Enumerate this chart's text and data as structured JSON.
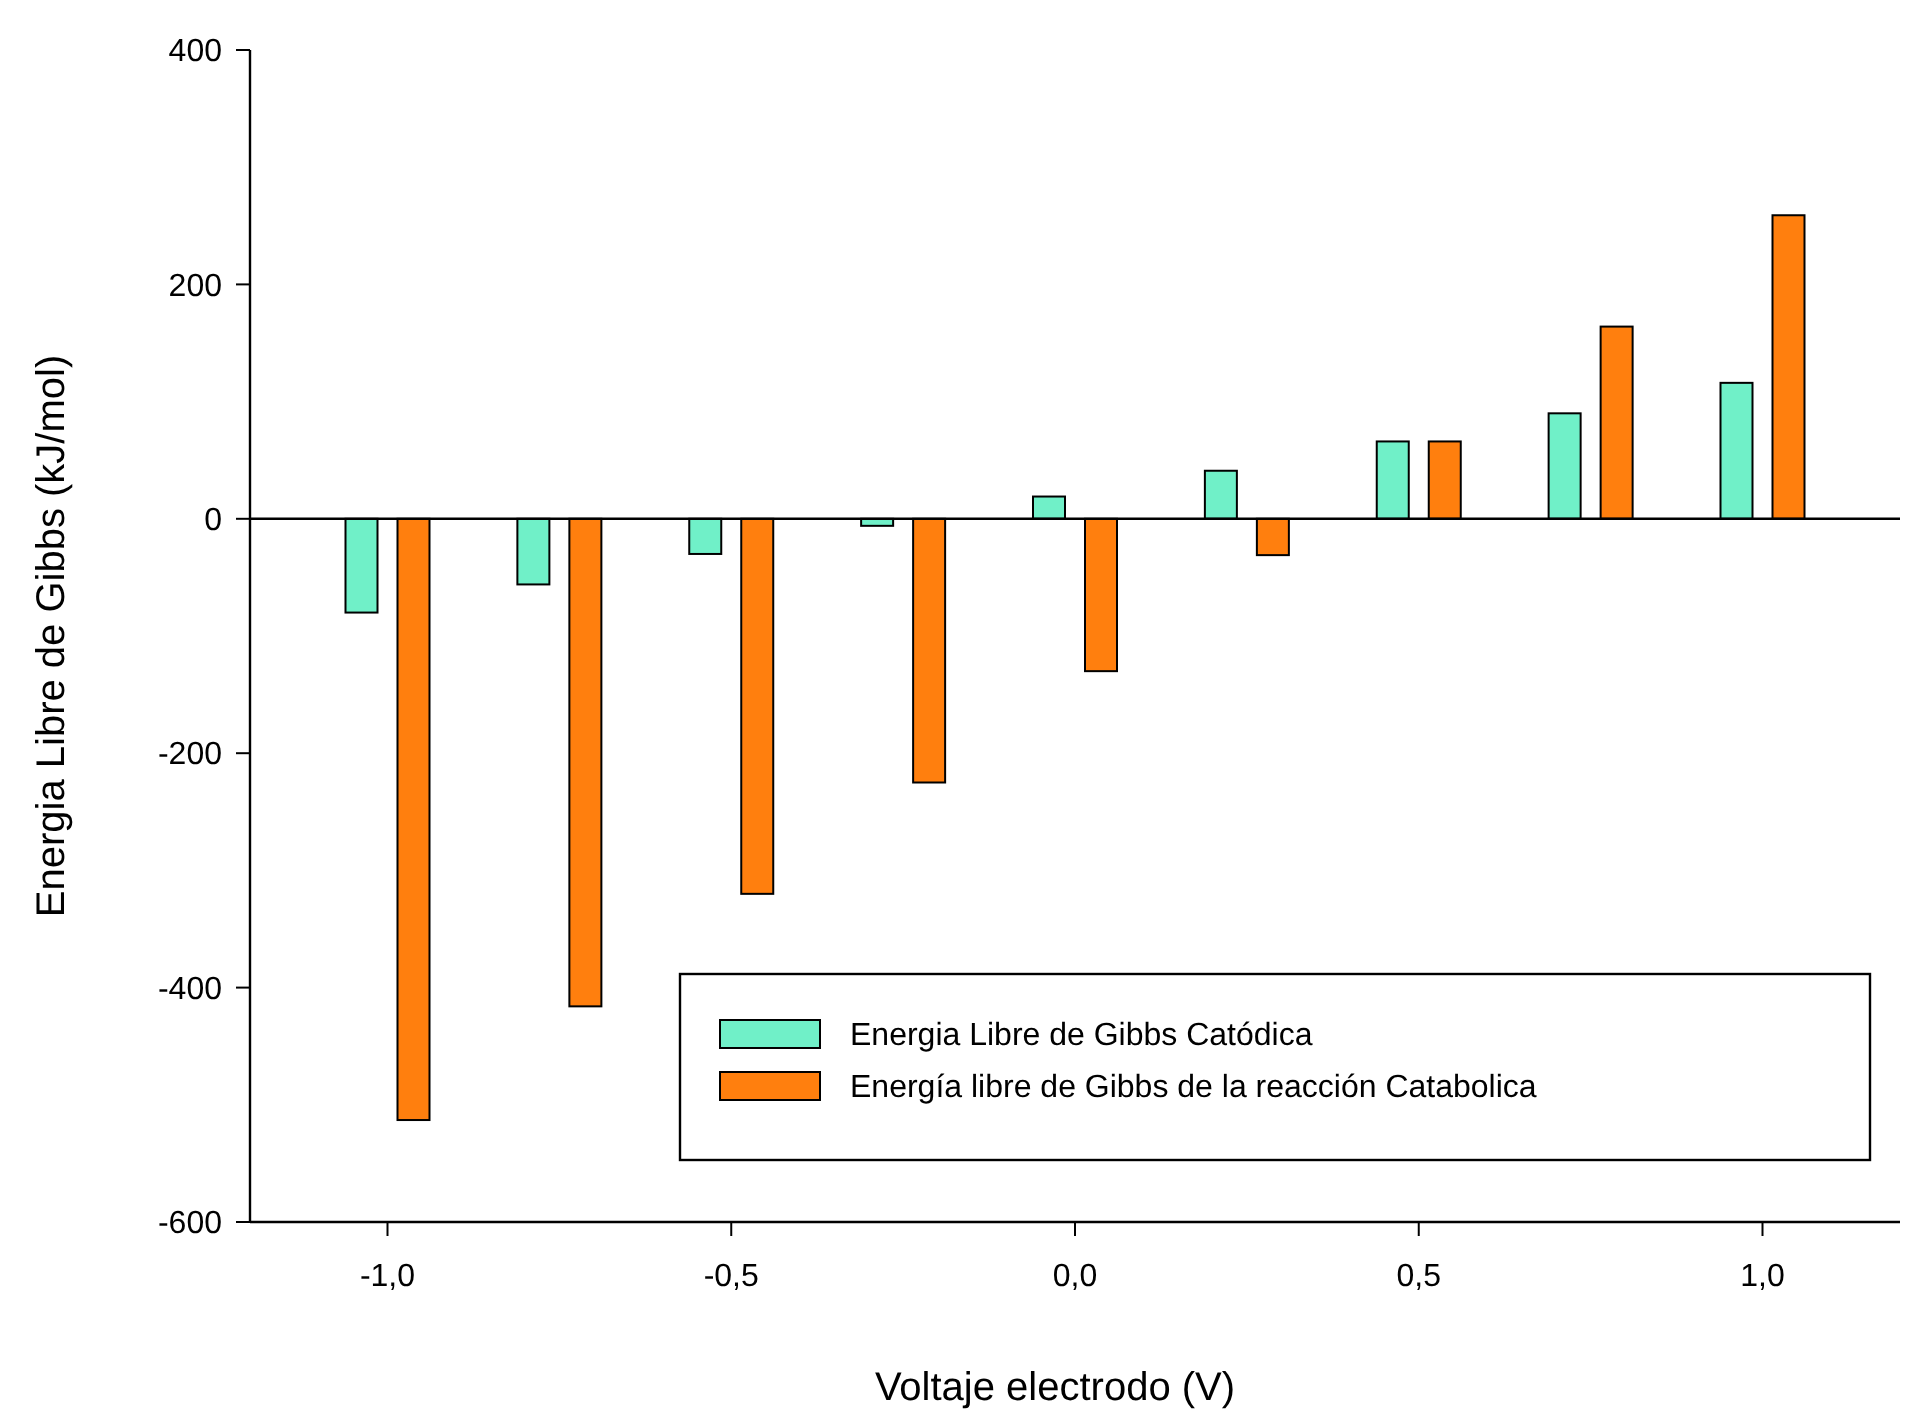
{
  "chart_data": {
    "type": "bar",
    "xlabel": "Voltaje electrodo (V)",
    "ylabel": "Energia Libre de Gibbs (kJ/mol)",
    "x": [
      -1,
      -0.75,
      -0.5,
      -0.25,
      0,
      0.25,
      0.5,
      0.75,
      1
    ],
    "series": [
      {
        "name": "Energia Libre de Gibbs Catódica",
        "color": "#70f0c8",
        "values": [
          -80,
          -56,
          -30,
          -6,
          19,
          41,
          66,
          90,
          116
        ]
      },
      {
        "name": "Energía libre de Gibbs de la reacción Catabolica",
        "color": "#ff7f0e",
        "values": [
          -513,
          -416,
          -320,
          -225,
          -130,
          -31,
          66,
          164,
          259
        ]
      }
    ],
    "xlim": [
      -1.2,
      1.2
    ],
    "xticks": [
      {
        "value": -1,
        "label": "-1,0"
      },
      {
        "value": -0.5,
        "label": "-0,5"
      },
      {
        "value": 0,
        "label": "0,0"
      },
      {
        "value": 0.5,
        "label": "0,5"
      },
      {
        "value": 1,
        "label": "1,0"
      }
    ],
    "ylim": [
      -600,
      400
    ],
    "yticks": [
      -600,
      -400,
      -200,
      0,
      200,
      400
    ],
    "ref_lines": [
      {
        "axis": "y",
        "value": 0,
        "color": "#000000"
      }
    ],
    "grid": false,
    "legend": "bottom right"
  }
}
